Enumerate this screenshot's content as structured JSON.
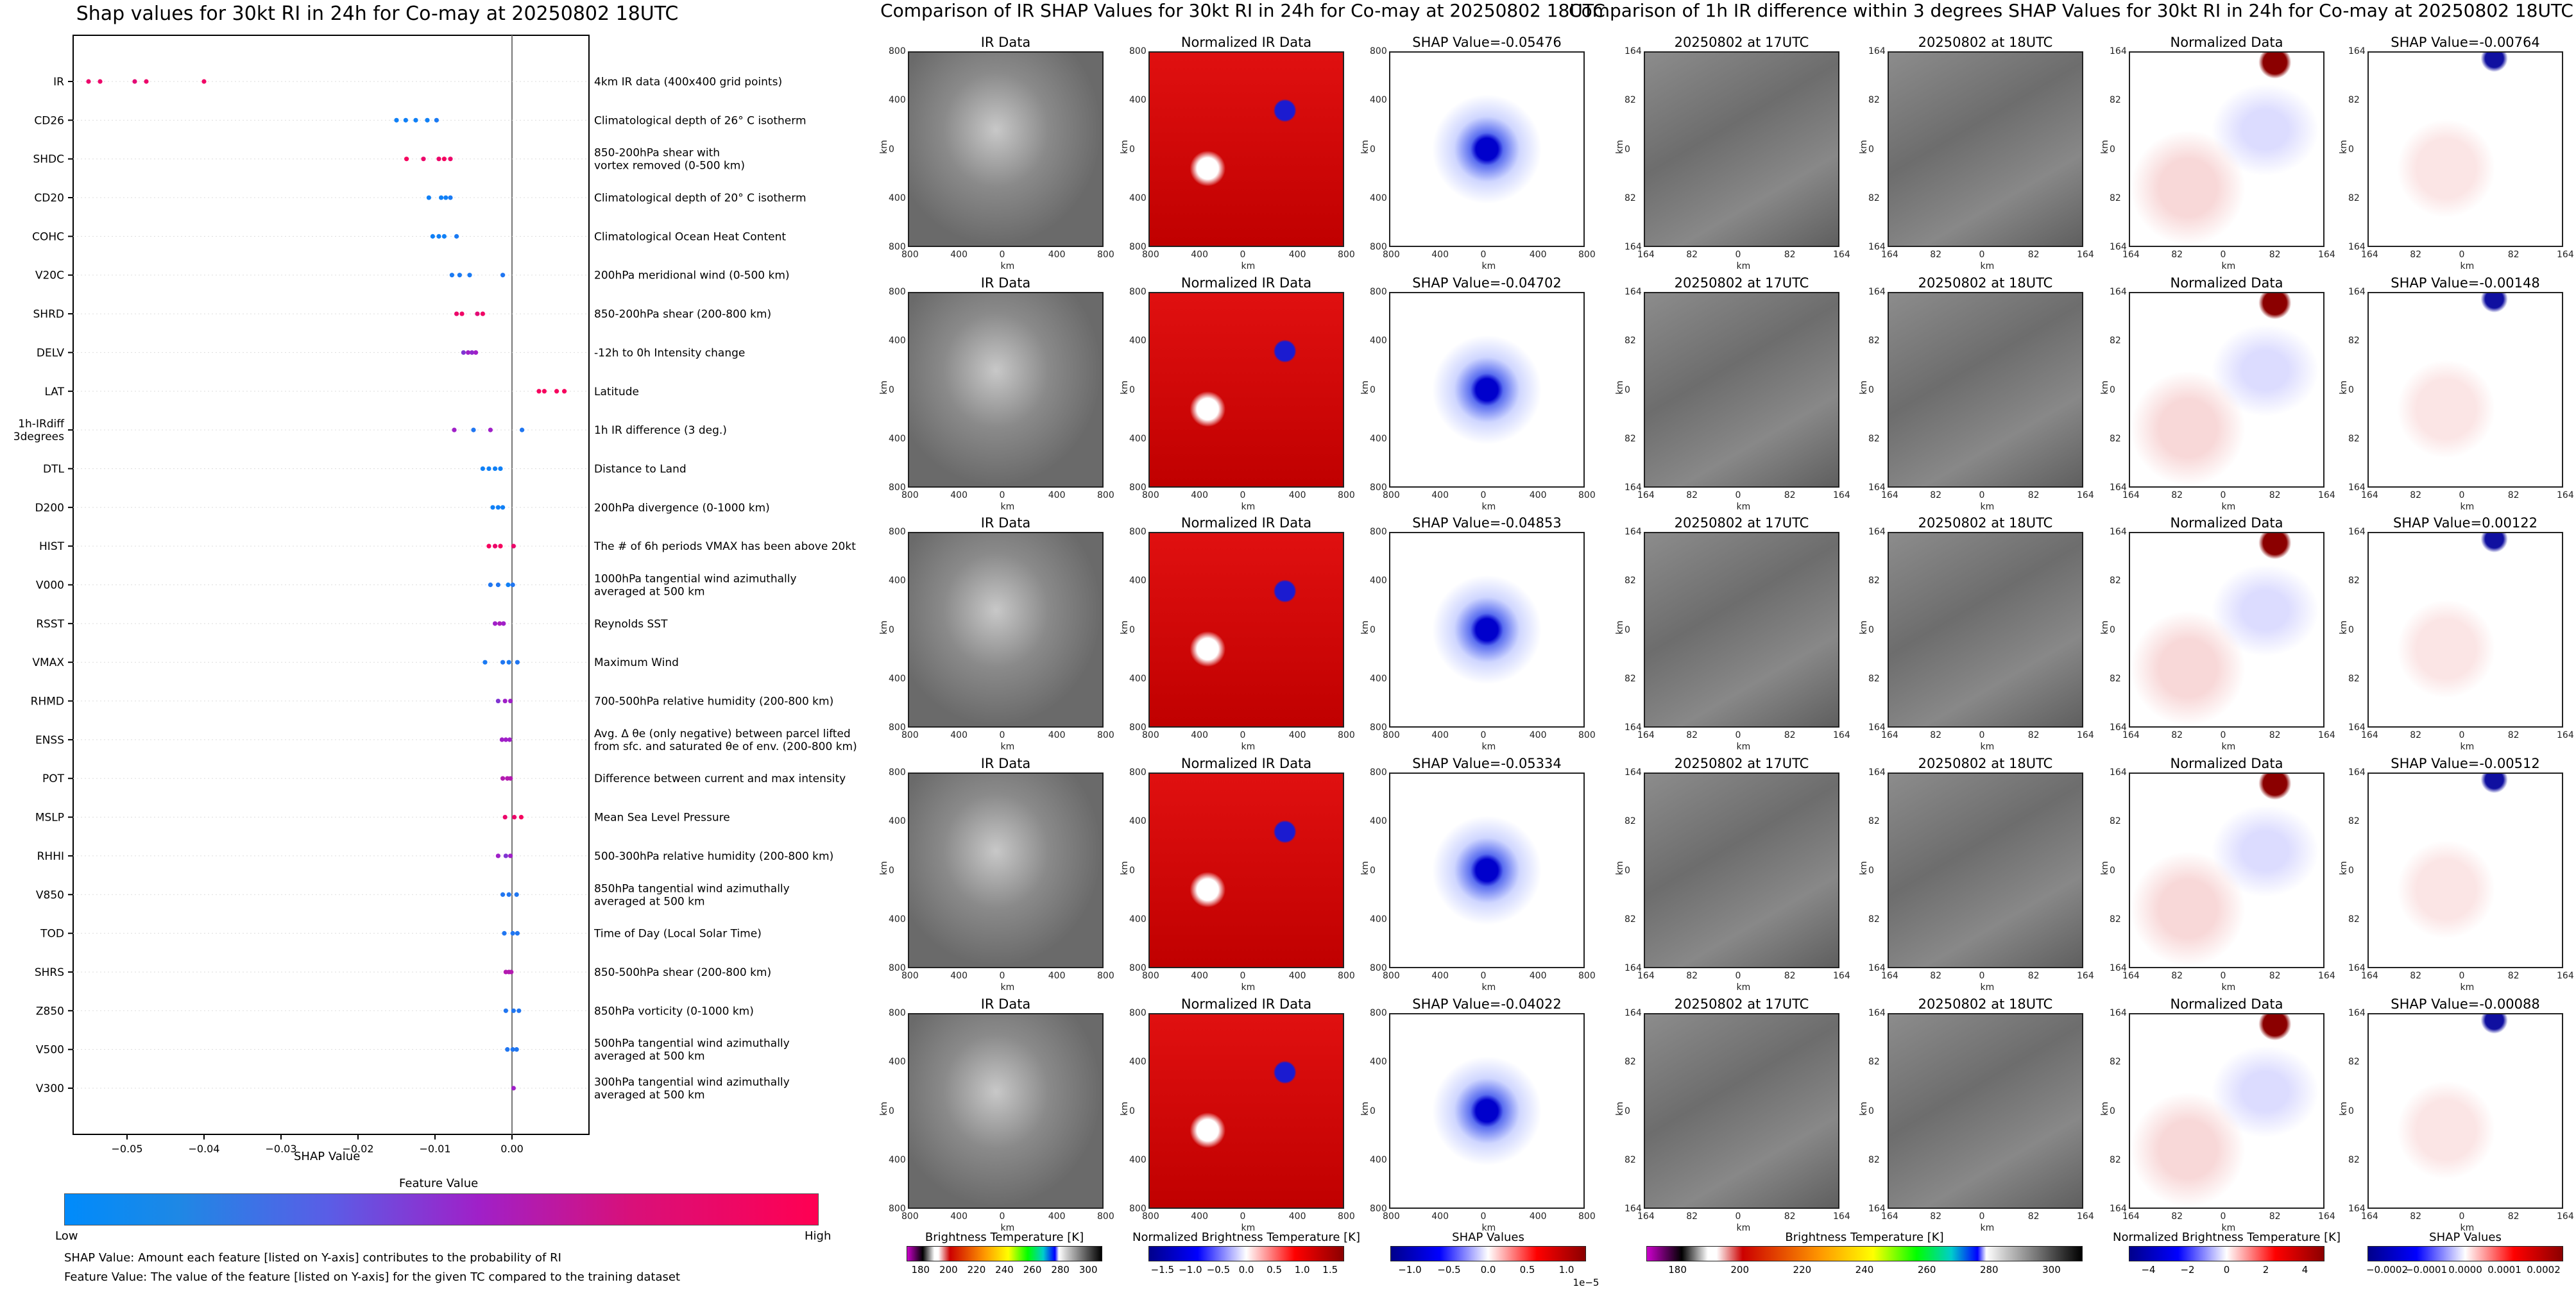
{
  "left": {
    "title": "Shap values for 30kt RI in 24h for Co-may at 20250802 18UTC",
    "xlabel": "SHAP Value",
    "colorbar_title": "Feature Value",
    "colorbar_low": "Low",
    "colorbar_high": "High",
    "note1": "SHAP Value: Amount each feature [listed on Y-axis] contributes to the probability of RI",
    "note2": "Feature Value: The value of the feature [listed on Y-axis] for the given TC compared to the training dataset"
  },
  "chart_data": [
    {
      "type": "scatter",
      "title": "Shap values for 30kt RI in 24h for Co-may at 20250802 18UTC",
      "xlabel": "SHAP Value",
      "xlim": [
        -0.057,
        0.01
      ],
      "xticks": [
        "−0.05",
        "−0.04",
        "−0.03",
        "−0.02",
        "−0.01",
        "0.00"
      ],
      "xtick_values": [
        -0.05,
        -0.04,
        -0.03,
        -0.02,
        -0.01,
        0.0
      ],
      "colors": {
        "low": "#1E88E5",
        "mid": "#9C27B0",
        "high": "#FF0052"
      },
      "features": [
        {
          "name": "IR",
          "desc": "4km IR data (400x400 grid points)",
          "points": [
            [
              -0.055,
              0.9
            ],
            [
              -0.0535,
              0.9
            ],
            [
              -0.049,
              0.85
            ],
            [
              -0.0475,
              0.9
            ],
            [
              -0.04,
              0.92
            ]
          ]
        },
        {
          "name": "CD26",
          "desc": "Climatological depth of 26° C isotherm",
          "points": [
            [
              -0.015,
              0.05
            ],
            [
              -0.0138,
              0.05
            ],
            [
              -0.0125,
              0.05
            ],
            [
              -0.011,
              0.05
            ],
            [
              -0.0098,
              0.08
            ]
          ]
        },
        {
          "name": "SHDC",
          "desc": "850-200hPa shear with\nvortex removed (0-500 km)",
          "points": [
            [
              -0.0137,
              0.95
            ],
            [
              -0.0115,
              0.9
            ],
            [
              -0.0095,
              0.9
            ],
            [
              -0.0088,
              0.95
            ],
            [
              -0.008,
              0.9
            ]
          ]
        },
        {
          "name": "CD20",
          "desc": "Climatological depth of 20° C isotherm",
          "points": [
            [
              -0.0108,
              0.05
            ],
            [
              -0.0092,
              0.05
            ],
            [
              -0.0086,
              0.05
            ],
            [
              -0.008,
              0.08
            ]
          ]
        },
        {
          "name": "COHC",
          "desc": "Climatological Ocean Heat Content",
          "points": [
            [
              -0.0103,
              0.05
            ],
            [
              -0.0095,
              0.05
            ],
            [
              -0.0088,
              0.05
            ],
            [
              -0.0072,
              0.08
            ]
          ]
        },
        {
          "name": "V20C",
          "desc": "200hPa meridional wind (0-500 km)",
          "points": [
            [
              -0.0078,
              0.08
            ],
            [
              -0.0068,
              0.08
            ],
            [
              -0.0055,
              0.08
            ],
            [
              -0.0012,
              0.1
            ]
          ]
        },
        {
          "name": "SHRD",
          "desc": "850-200hPa shear (200-800 km)",
          "points": [
            [
              -0.0072,
              0.9
            ],
            [
              -0.0065,
              0.92
            ],
            [
              -0.0045,
              0.85
            ],
            [
              -0.0038,
              0.92
            ]
          ]
        },
        {
          "name": "DELV",
          "desc": "-12h to 0h Intensity change",
          "points": [
            [
              -0.0063,
              0.4
            ],
            [
              -0.0057,
              0.5
            ],
            [
              -0.0052,
              0.45
            ],
            [
              -0.0047,
              0.5
            ]
          ]
        },
        {
          "name": "LAT",
          "desc": "Latitude",
          "points": [
            [
              0.0035,
              0.95
            ],
            [
              0.0042,
              0.95
            ],
            [
              0.0058,
              0.95
            ],
            [
              0.0068,
              0.95
            ]
          ]
        },
        {
          "name": "1h-IRdiff\n3degrees",
          "desc": "1h IR difference (3 deg.)",
          "points": [
            [
              -0.0075,
              0.5
            ],
            [
              -0.005,
              0.1
            ],
            [
              -0.0028,
              0.5
            ],
            [
              0.0013,
              0.1
            ]
          ]
        },
        {
          "name": "DTL",
          "desc": "Distance to Land",
          "points": [
            [
              -0.0038,
              0.05
            ],
            [
              -0.003,
              0.05
            ],
            [
              -0.0022,
              0.05
            ],
            [
              -0.0015,
              0.05
            ]
          ]
        },
        {
          "name": "D200",
          "desc": "200hPa divergence (0-1000 km)",
          "points": [
            [
              -0.0025,
              0.05
            ],
            [
              -0.0018,
              0.05
            ],
            [
              -0.0012,
              0.05
            ]
          ]
        },
        {
          "name": "HIST",
          "desc": "The # of 6h periods VMAX has been above 20kt",
          "points": [
            [
              -0.003,
              0.95
            ],
            [
              -0.0022,
              0.9
            ],
            [
              -0.0015,
              0.95
            ],
            [
              0.0002,
              0.9
            ]
          ]
        },
        {
          "name": "V000",
          "desc": "1000hPa tangential wind azimuthally\naveraged at 500 km",
          "points": [
            [
              -0.0028,
              0.1
            ],
            [
              -0.0018,
              0.1
            ],
            [
              -0.0005,
              0.05
            ],
            [
              0.0001,
              0.1
            ]
          ]
        },
        {
          "name": "RSST",
          "desc": "Reynolds SST",
          "points": [
            [
              -0.0022,
              0.5
            ],
            [
              -0.0016,
              0.55
            ],
            [
              -0.0011,
              0.5
            ]
          ]
        },
        {
          "name": "VMAX",
          "desc": "Maximum Wind",
          "points": [
            [
              -0.0035,
              0.08
            ],
            [
              -0.0012,
              0.1
            ],
            [
              -0.0004,
              0.08
            ],
            [
              0.0007,
              0.1
            ]
          ]
        },
        {
          "name": "RHMD",
          "desc": "700-500hPa relative humidity (200-800 km)",
          "points": [
            [
              -0.0018,
              0.4
            ],
            [
              -0.0009,
              0.5
            ],
            [
              -0.0002,
              0.5
            ]
          ]
        },
        {
          "name": "ENSS",
          "desc": "Avg. Δ θe (only negative) between parcel lifted\nfrom sfc. and saturated θe of env. (200-800 km)",
          "points": [
            [
              -0.0013,
              0.5
            ],
            [
              -0.0008,
              0.5
            ],
            [
              -0.0003,
              0.5
            ]
          ]
        },
        {
          "name": "POT",
          "desc": "Difference between current and max intensity",
          "points": [
            [
              -0.0012,
              0.6
            ],
            [
              -0.0006,
              0.6
            ],
            [
              -0.0002,
              0.6
            ]
          ]
        },
        {
          "name": "MSLP",
          "desc": "Mean Sea Level Pressure",
          "points": [
            [
              -0.0009,
              0.9
            ],
            [
              0.0003,
              0.9
            ],
            [
              0.0012,
              0.95
            ]
          ]
        },
        {
          "name": "RHHI",
          "desc": "500-300hPa relative humidity (200-800 km)",
          "points": [
            [
              -0.0018,
              0.5
            ],
            [
              -0.0008,
              0.4
            ],
            [
              -0.0002,
              0.5
            ]
          ]
        },
        {
          "name": "V850",
          "desc": "850hPa tangential wind azimuthally\naveraged at 500 km",
          "points": [
            [
              -0.0012,
              0.1
            ],
            [
              -0.0004,
              0.1
            ],
            [
              0.0006,
              0.1
            ]
          ]
        },
        {
          "name": "TOD",
          "desc": "Time of Day (Local Solar Time)",
          "points": [
            [
              -0.001,
              0.1
            ],
            [
              0.0001,
              0.1
            ],
            [
              0.0007,
              0.1
            ]
          ]
        },
        {
          "name": "SHRS",
          "desc": "850-500hPa shear (200-800 km)",
          "points": [
            [
              -0.0008,
              0.6
            ],
            [
              -0.0004,
              0.6
            ],
            [
              -0.0001,
              0.6
            ]
          ]
        },
        {
          "name": "Z850",
          "desc": "850hPa vorticity (0-1000 km)",
          "points": [
            [
              -0.0008,
              0.1
            ],
            [
              0.0002,
              0.1
            ],
            [
              0.0009,
              0.1
            ]
          ]
        },
        {
          "name": "V500",
          "desc": "500hPa tangential wind azimuthally\naveraged at 500 km",
          "points": [
            [
              -0.0006,
              0.1
            ],
            [
              0.0001,
              0.1
            ],
            [
              0.0006,
              0.1
            ]
          ]
        },
        {
          "name": "V300",
          "desc": "300hPa tangential wind azimuthally\naveraged at 500 km",
          "points": [
            [
              0.0002,
              0.5
            ]
          ]
        }
      ]
    },
    {
      "type": "heatmap",
      "title": "Comparison of IR SHAP Values for 30kt RI in 24h for Co-may at 20250802 18UTC",
      "columns": [
        "IR Data",
        "Normalized IR Data",
        "SHAP Value"
      ],
      "shap_values": [
        "-0.05476",
        "-0.04702",
        "-0.04853",
        "-0.05334",
        "-0.04022"
      ],
      "axis_label": "km",
      "ticks": [
        "800",
        "400",
        "0",
        "400",
        "800"
      ],
      "colorbars": [
        {
          "label": "Brightness Temperature [K]",
          "ticks": [
            "180",
            "200",
            "220",
            "240",
            "260",
            "280",
            "300"
          ]
        },
        {
          "label": "Normalized Brightness Temperature [K]",
          "ticks": [
            "−1.5",
            "−1.0",
            "−0.5",
            "0.0",
            "0.5",
            "1.0",
            "1.5"
          ]
        },
        {
          "label": "SHAP Values",
          "ticks": [
            "−1.0",
            "−0.5",
            "0.0",
            "0.5",
            "1.0"
          ],
          "offset": "1e−5"
        }
      ]
    },
    {
      "type": "heatmap",
      "title": "Comparison of 1h IR difference within 3 degrees SHAP Values for 30kt RI in 24h for Co-may at 20250802 18UTC",
      "columns": [
        "20250802 at 17UTC",
        "20250802 at 18UTC",
        "Normalized Data",
        "SHAP Value"
      ],
      "shap_values": [
        "-0.00764",
        "-0.00148",
        "0.00122",
        "-0.00512",
        "-0.00088"
      ],
      "axis_label": "km",
      "ticks": [
        "164",
        "82",
        "0",
        "82",
        "164"
      ],
      "colorbars": [
        {
          "label": "Brightness Temperature [K]",
          "ticks": [
            "180",
            "200",
            "220",
            "240",
            "260",
            "280",
            "300"
          ]
        },
        {
          "label": "Normalized Brightness Temperature [K]",
          "ticks": [
            "−4",
            "−2",
            "0",
            "2",
            "4"
          ]
        },
        {
          "label": "SHAP Values",
          "ticks": [
            "−0.0002",
            "−0.0001",
            "0.0000",
            "0.0001",
            "0.0002"
          ]
        }
      ]
    }
  ],
  "panels": {
    "ir_title": "Comparison of IR SHAP Values for 30kt RI in 24h for Co-may at 20250802 18UTC",
    "diff_title": "Comparison of 1h IR difference within 3 degrees SHAP Values for 30kt RI in 24h for Co-may at 20250802 18UTC",
    "shap_prefix": "SHAP Value="
  }
}
